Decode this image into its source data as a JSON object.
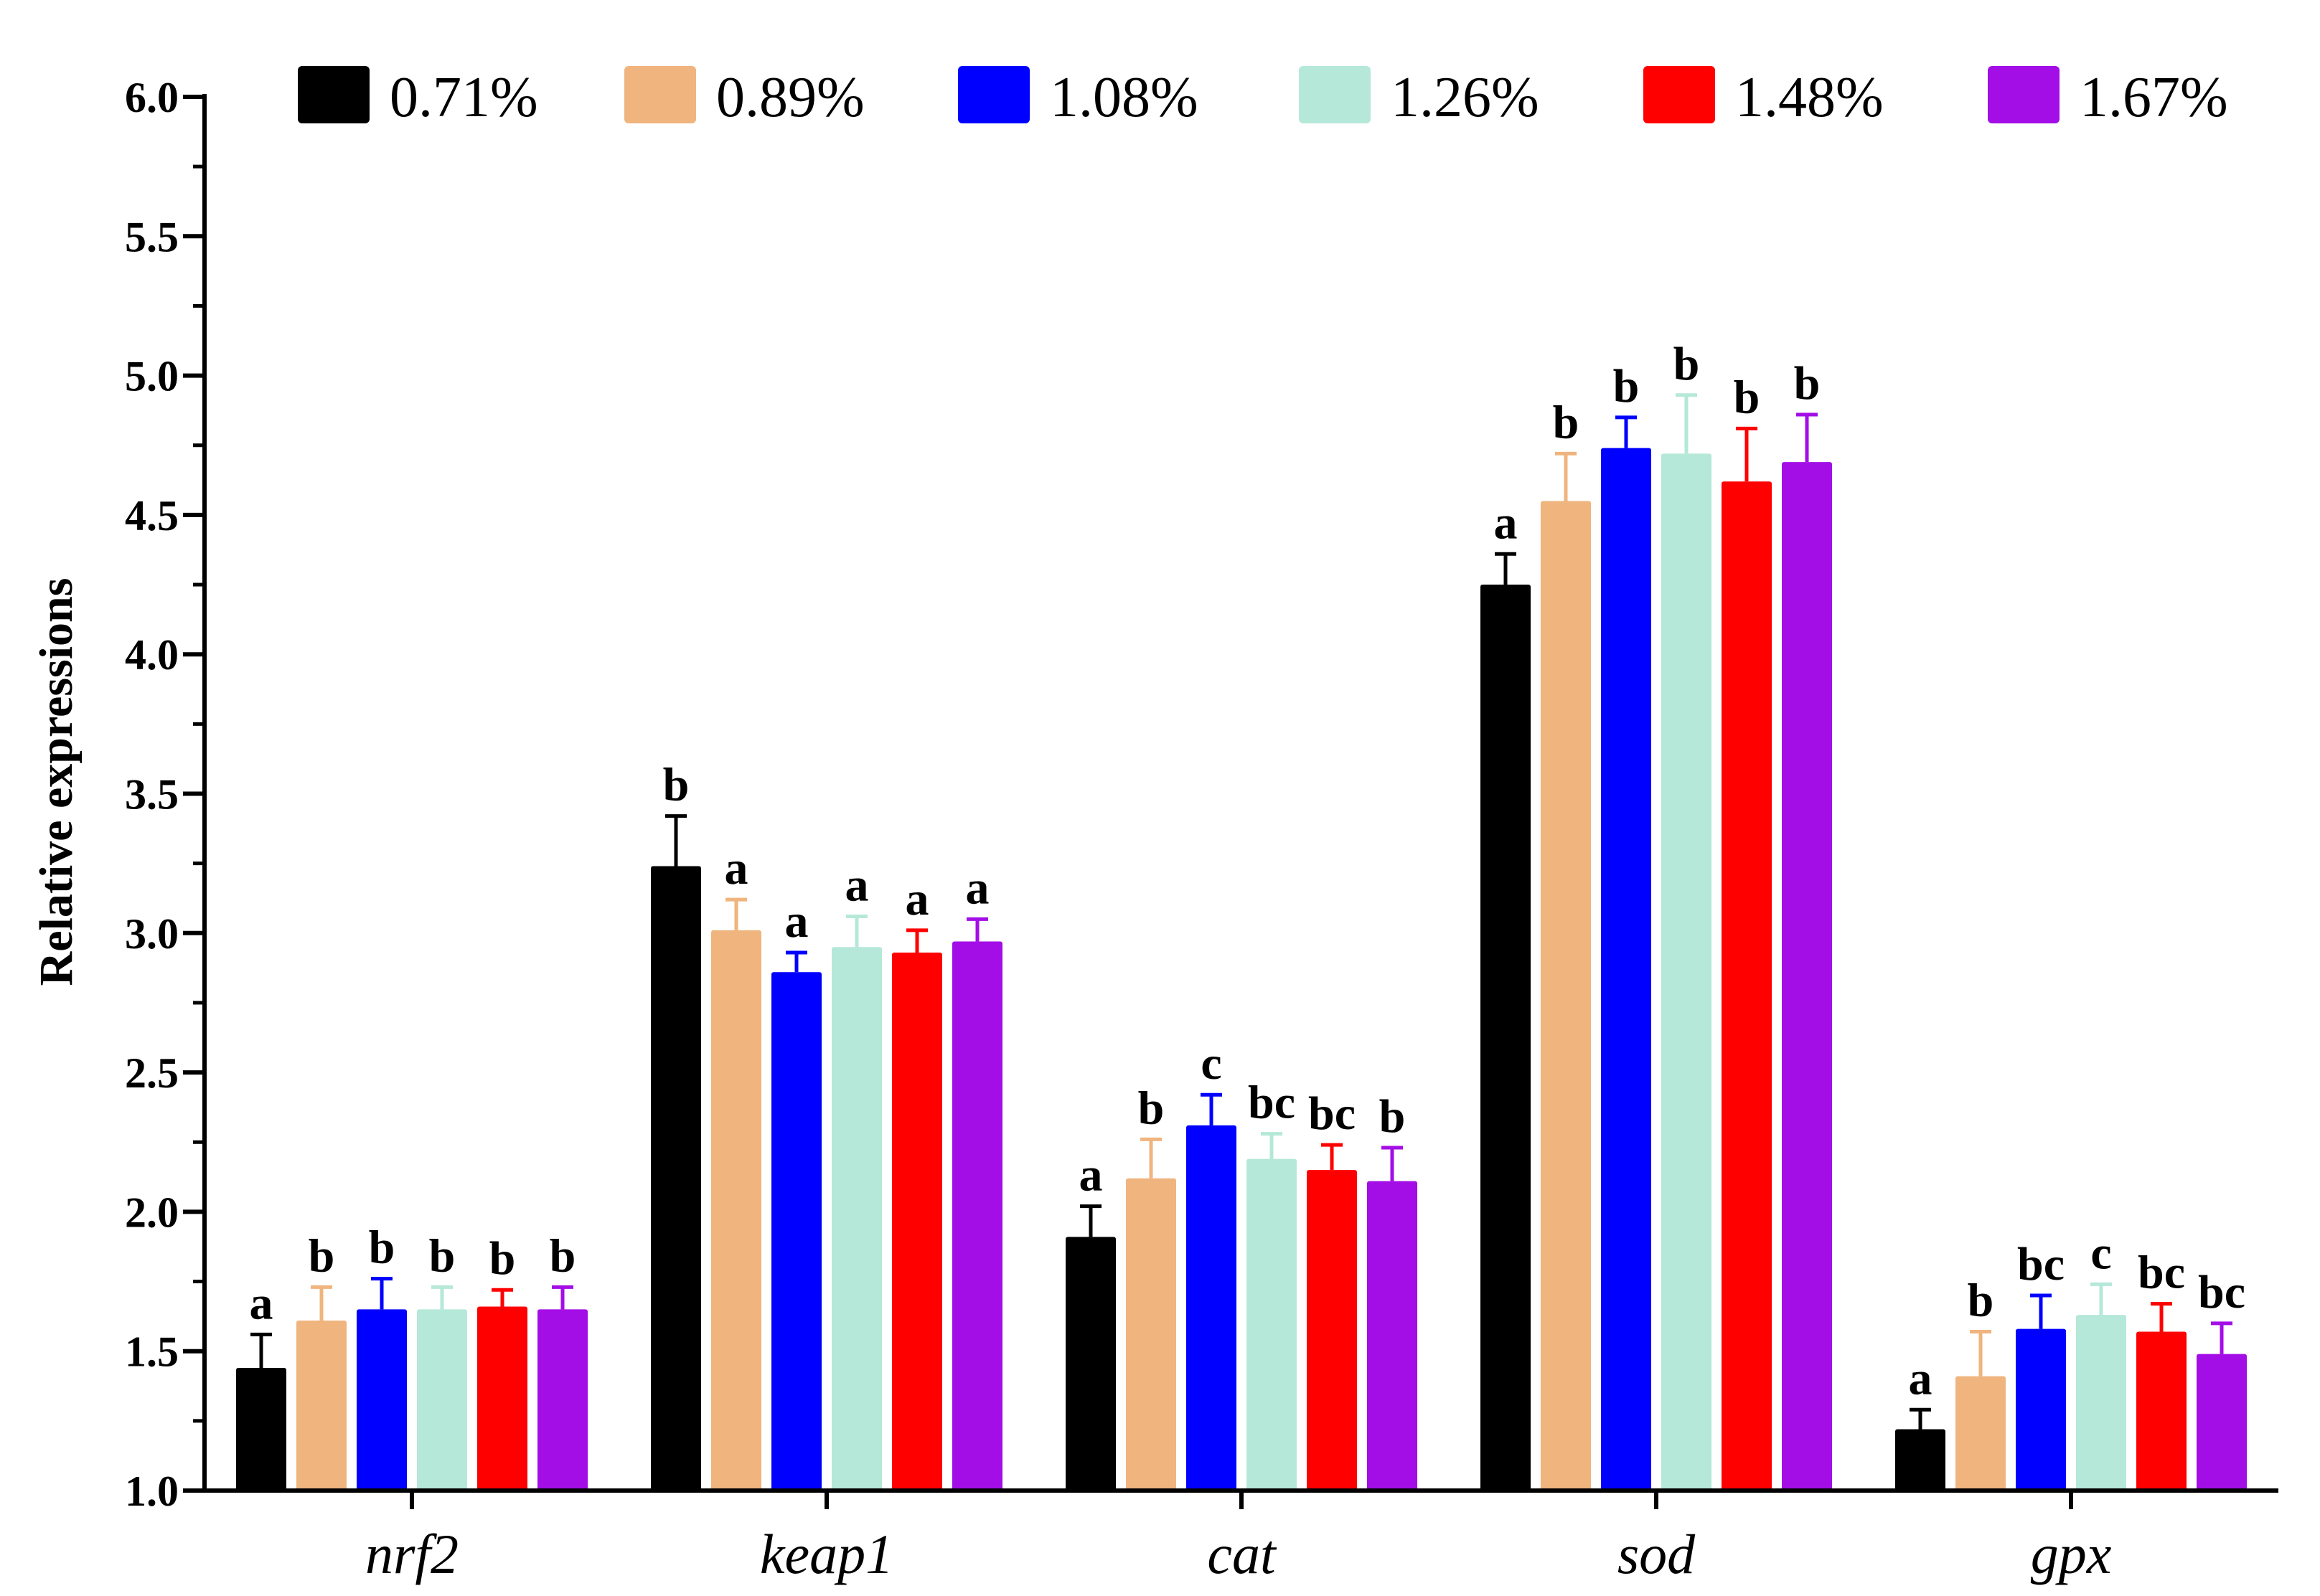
{
  "chart_data": {
    "type": "bar",
    "title": "",
    "xlabel": "",
    "ylabel": "Relative expressions",
    "ylim": [
      1.0,
      6.0
    ],
    "yticks": [
      "1.0",
      "1.5",
      "2.0",
      "2.5",
      "3.0",
      "3.5",
      "4.0",
      "4.5",
      "5.0",
      "5.5",
      "6.0"
    ],
    "grid": false,
    "legend_position": "top",
    "categories": [
      "nrf2",
      "keap1",
      "cat",
      "sod",
      "gpx"
    ],
    "series": [
      {
        "name": "0.71%",
        "color": "#000000",
        "values": [
          1.44,
          3.24,
          1.91,
          4.25,
          1.22
        ],
        "errors": [
          0.12,
          0.18,
          0.11,
          0.11,
          0.07
        ],
        "letters": [
          "a",
          "b",
          "a",
          "a",
          "a"
        ]
      },
      {
        "name": "0.89%",
        "color": "#F0B47E",
        "values": [
          1.61,
          3.01,
          2.12,
          4.55,
          1.41
        ],
        "errors": [
          0.12,
          0.11,
          0.14,
          0.17,
          0.16
        ],
        "letters": [
          "b",
          "a",
          "b",
          "b",
          "b"
        ]
      },
      {
        "name": "1.08%",
        "color": "#0000FF",
        "values": [
          1.65,
          2.86,
          2.31,
          4.74,
          1.58
        ],
        "errors": [
          0.11,
          0.07,
          0.11,
          0.11,
          0.12
        ],
        "letters": [
          "b",
          "a",
          "c",
          "b",
          "bc"
        ]
      },
      {
        "name": "1.26%",
        "color": "#B5E8D8",
        "values": [
          1.65,
          2.95,
          2.19,
          4.72,
          1.63
        ],
        "errors": [
          0.08,
          0.11,
          0.09,
          0.21,
          0.11
        ],
        "letters": [
          "b",
          "a",
          "bc",
          "b",
          "c"
        ]
      },
      {
        "name": "1.48%",
        "color": "#FF0000",
        "values": [
          1.66,
          2.93,
          2.15,
          4.62,
          1.57
        ],
        "errors": [
          0.06,
          0.08,
          0.09,
          0.19,
          0.1
        ],
        "letters": [
          "b",
          "a",
          "bc",
          "b",
          "bc"
        ]
      },
      {
        "name": "1.67%",
        "color": "#A30EE6",
        "values": [
          1.65,
          2.97,
          2.11,
          4.69,
          1.49
        ],
        "errors": [
          0.08,
          0.08,
          0.12,
          0.17,
          0.11
        ],
        "letters": [
          "b",
          "a",
          "b",
          "b",
          "bc"
        ]
      }
    ]
  }
}
